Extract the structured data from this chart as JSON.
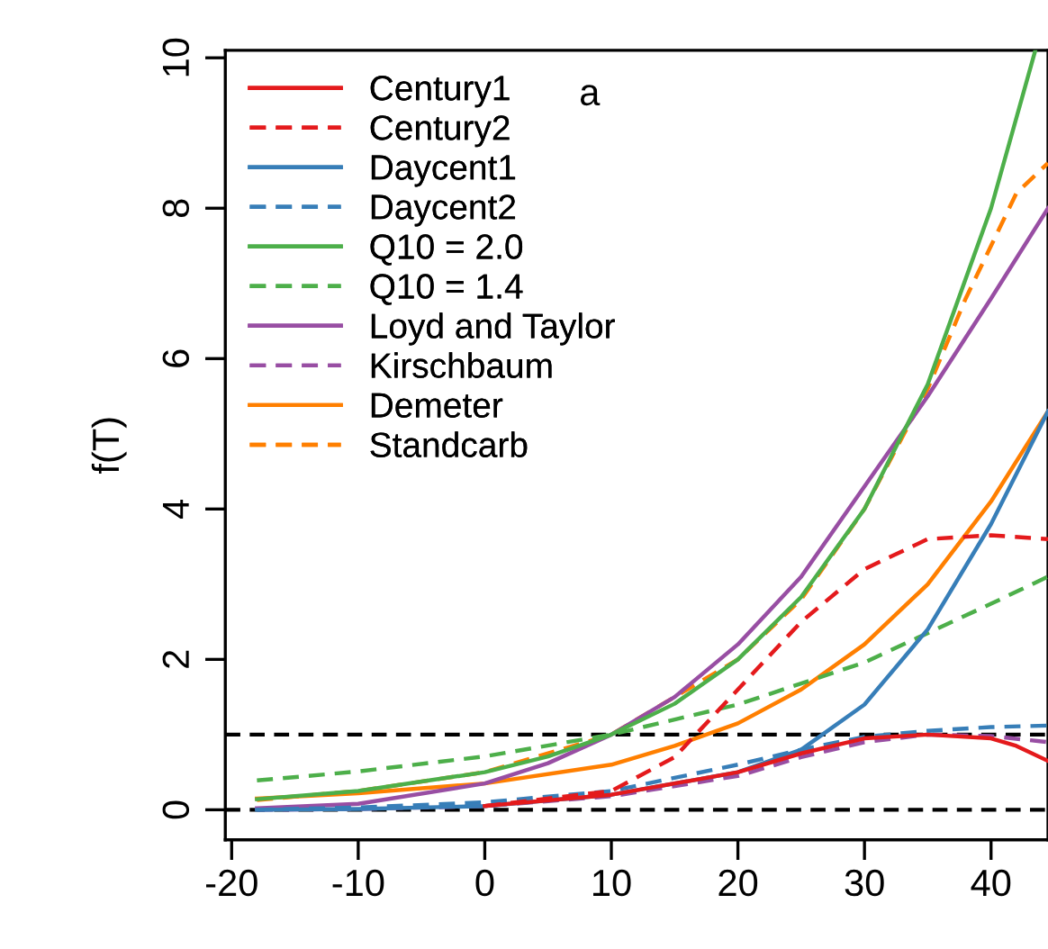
{
  "chart_data": {
    "type": "line",
    "ylabel": "f(T)",
    "annotations": [
      "a"
    ],
    "legend": "top left",
    "grid": false,
    "marker": "none",
    "xlim": [
      -20.5,
      44.5
    ],
    "ylim": [
      -0.4,
      10.1
    ],
    "xticks": [
      -20,
      -10,
      0,
      10,
      20,
      30,
      40
    ],
    "yticks": [
      0,
      2,
      4,
      6,
      8,
      10
    ],
    "ref_lines": [
      {
        "axis": "y",
        "value": 0,
        "color": "#000000",
        "line_style": "dashed"
      },
      {
        "axis": "y",
        "value": 1,
        "color": "#000000",
        "line_style": "dashed"
      }
    ],
    "series": [
      {
        "name": "Century1",
        "color": "#e41a1c",
        "line_style": "solid",
        "x": [
          0,
          10,
          20,
          25,
          30,
          35,
          40,
          42,
          44.5
        ],
        "values": [
          0.05,
          0.2,
          0.5,
          0.75,
          0.95,
          1.0,
          0.95,
          0.85,
          0.65
        ]
      },
      {
        "name": "Century2",
        "color": "#e41a1c",
        "line_style": "dashed",
        "x": [
          0,
          10,
          15,
          20,
          25,
          30,
          35,
          40,
          44.5
        ],
        "values": [
          0.05,
          0.25,
          0.7,
          1.6,
          2.5,
          3.2,
          3.6,
          3.65,
          3.6
        ]
      },
      {
        "name": "Daycent1",
        "color": "#377eb8",
        "line_style": "solid",
        "x": [
          -18,
          -10,
          0,
          10,
          20,
          25,
          30,
          35,
          40,
          44.5
        ],
        "values": [
          0,
          0.01,
          0.05,
          0.2,
          0.5,
          0.8,
          1.4,
          2.4,
          3.8,
          5.3
        ]
      },
      {
        "name": "Daycent2",
        "color": "#377eb8",
        "line_style": "dashed",
        "x": [
          -18,
          -10,
          0,
          10,
          20,
          25,
          30,
          35,
          40,
          44.5
        ],
        "values": [
          0,
          0.03,
          0.1,
          0.25,
          0.6,
          0.8,
          0.97,
          1.05,
          1.1,
          1.12
        ]
      },
      {
        "name": "Q10 = 2.0",
        "color": "#4daf4a",
        "line_style": "solid",
        "x": [
          -18,
          -10,
          0,
          5,
          10,
          15,
          20,
          25,
          30,
          35,
          40,
          43.5
        ],
        "values": [
          0.14,
          0.25,
          0.5,
          0.71,
          1.0,
          1.41,
          2.0,
          2.83,
          4.0,
          5.66,
          8.0,
          10.1
        ]
      },
      {
        "name": "Q10 = 1.4",
        "color": "#4daf4a",
        "line_style": "dashed",
        "x": [
          -18,
          -10,
          0,
          10,
          20,
          30,
          40,
          44.5
        ],
        "values": [
          0.39,
          0.51,
          0.71,
          1.0,
          1.4,
          1.96,
          2.74,
          3.1
        ]
      },
      {
        "name": "Loyd and Taylor",
        "color": "#984ea3",
        "line_style": "solid",
        "x": [
          -18,
          -10,
          0,
          5,
          10,
          15,
          20,
          25,
          30,
          35,
          40,
          44.5
        ],
        "values": [
          0.02,
          0.08,
          0.35,
          0.62,
          1.0,
          1.5,
          2.2,
          3.1,
          4.3,
          5.5,
          6.8,
          8.0
        ]
      },
      {
        "name": "Kirschbaum",
        "color": "#984ea3",
        "line_style": "dashed",
        "x": [
          -18,
          -10,
          0,
          10,
          20,
          25,
          30,
          35,
          40,
          44.5
        ],
        "values": [
          0,
          0.01,
          0.05,
          0.18,
          0.45,
          0.7,
          0.9,
          1.0,
          0.98,
          0.9
        ]
      },
      {
        "name": "Demeter",
        "color": "#ff7f00",
        "line_style": "solid",
        "x": [
          -18,
          -10,
          0,
          10,
          15,
          20,
          25,
          30,
          35,
          40,
          44.5
        ],
        "values": [
          0.15,
          0.22,
          0.35,
          0.6,
          0.85,
          1.15,
          1.6,
          2.2,
          3.0,
          4.1,
          5.3
        ]
      },
      {
        "name": "Standcarb",
        "color": "#ff7f00",
        "line_style": "dashed",
        "x": [
          -18,
          -10,
          0,
          10,
          20,
          25,
          30,
          35,
          38,
          40,
          42,
          44.5
        ],
        "values": [
          0.13,
          0.25,
          0.5,
          1.0,
          2.0,
          2.8,
          4.0,
          5.6,
          6.8,
          7.5,
          8.2,
          8.6
        ]
      }
    ]
  }
}
